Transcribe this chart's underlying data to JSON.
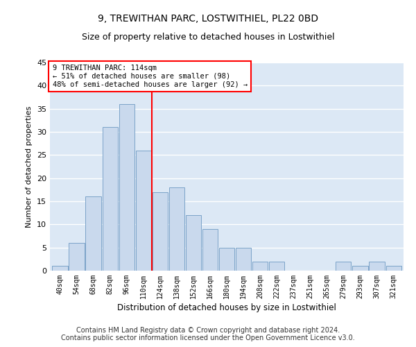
{
  "title": "9, TREWITHAN PARC, LOSTWITHIEL, PL22 0BD",
  "subtitle": "Size of property relative to detached houses in Lostwithiel",
  "xlabel": "Distribution of detached houses by size in Lostwithiel",
  "ylabel": "Number of detached properties",
  "bar_labels": [
    "40sqm",
    "54sqm",
    "68sqm",
    "82sqm",
    "96sqm",
    "110sqm",
    "124sqm",
    "138sqm",
    "152sqm",
    "166sqm",
    "180sqm",
    "194sqm",
    "208sqm",
    "222sqm",
    "237sqm",
    "251sqm",
    "265sqm",
    "279sqm",
    "293sqm",
    "307sqm",
    "321sqm"
  ],
  "bar_values": [
    1,
    6,
    16,
    31,
    36,
    26,
    17,
    18,
    12,
    9,
    5,
    5,
    2,
    2,
    0,
    0,
    0,
    2,
    1,
    2,
    1
  ],
  "bar_color": "#c9d9ed",
  "bar_edge_color": "#7ba3c8",
  "vline_x": 5.5,
  "vline_color": "red",
  "annotation_text": "9 TREWITHAN PARC: 114sqm\n← 51% of detached houses are smaller (98)\n48% of semi-detached houses are larger (92) →",
  "annotation_box_color": "white",
  "annotation_box_edge": "red",
  "ylim": [
    0,
    45
  ],
  "yticks": [
    0,
    5,
    10,
    15,
    20,
    25,
    30,
    35,
    40,
    45
  ],
  "footer_line1": "Contains HM Land Registry data © Crown copyright and database right 2024.",
  "footer_line2": "Contains public sector information licensed under the Open Government Licence v3.0.",
  "bg_color": "#dce8f5",
  "grid_color": "white",
  "title_fontsize": 10,
  "subtitle_fontsize": 9,
  "footer_fontsize": 7
}
